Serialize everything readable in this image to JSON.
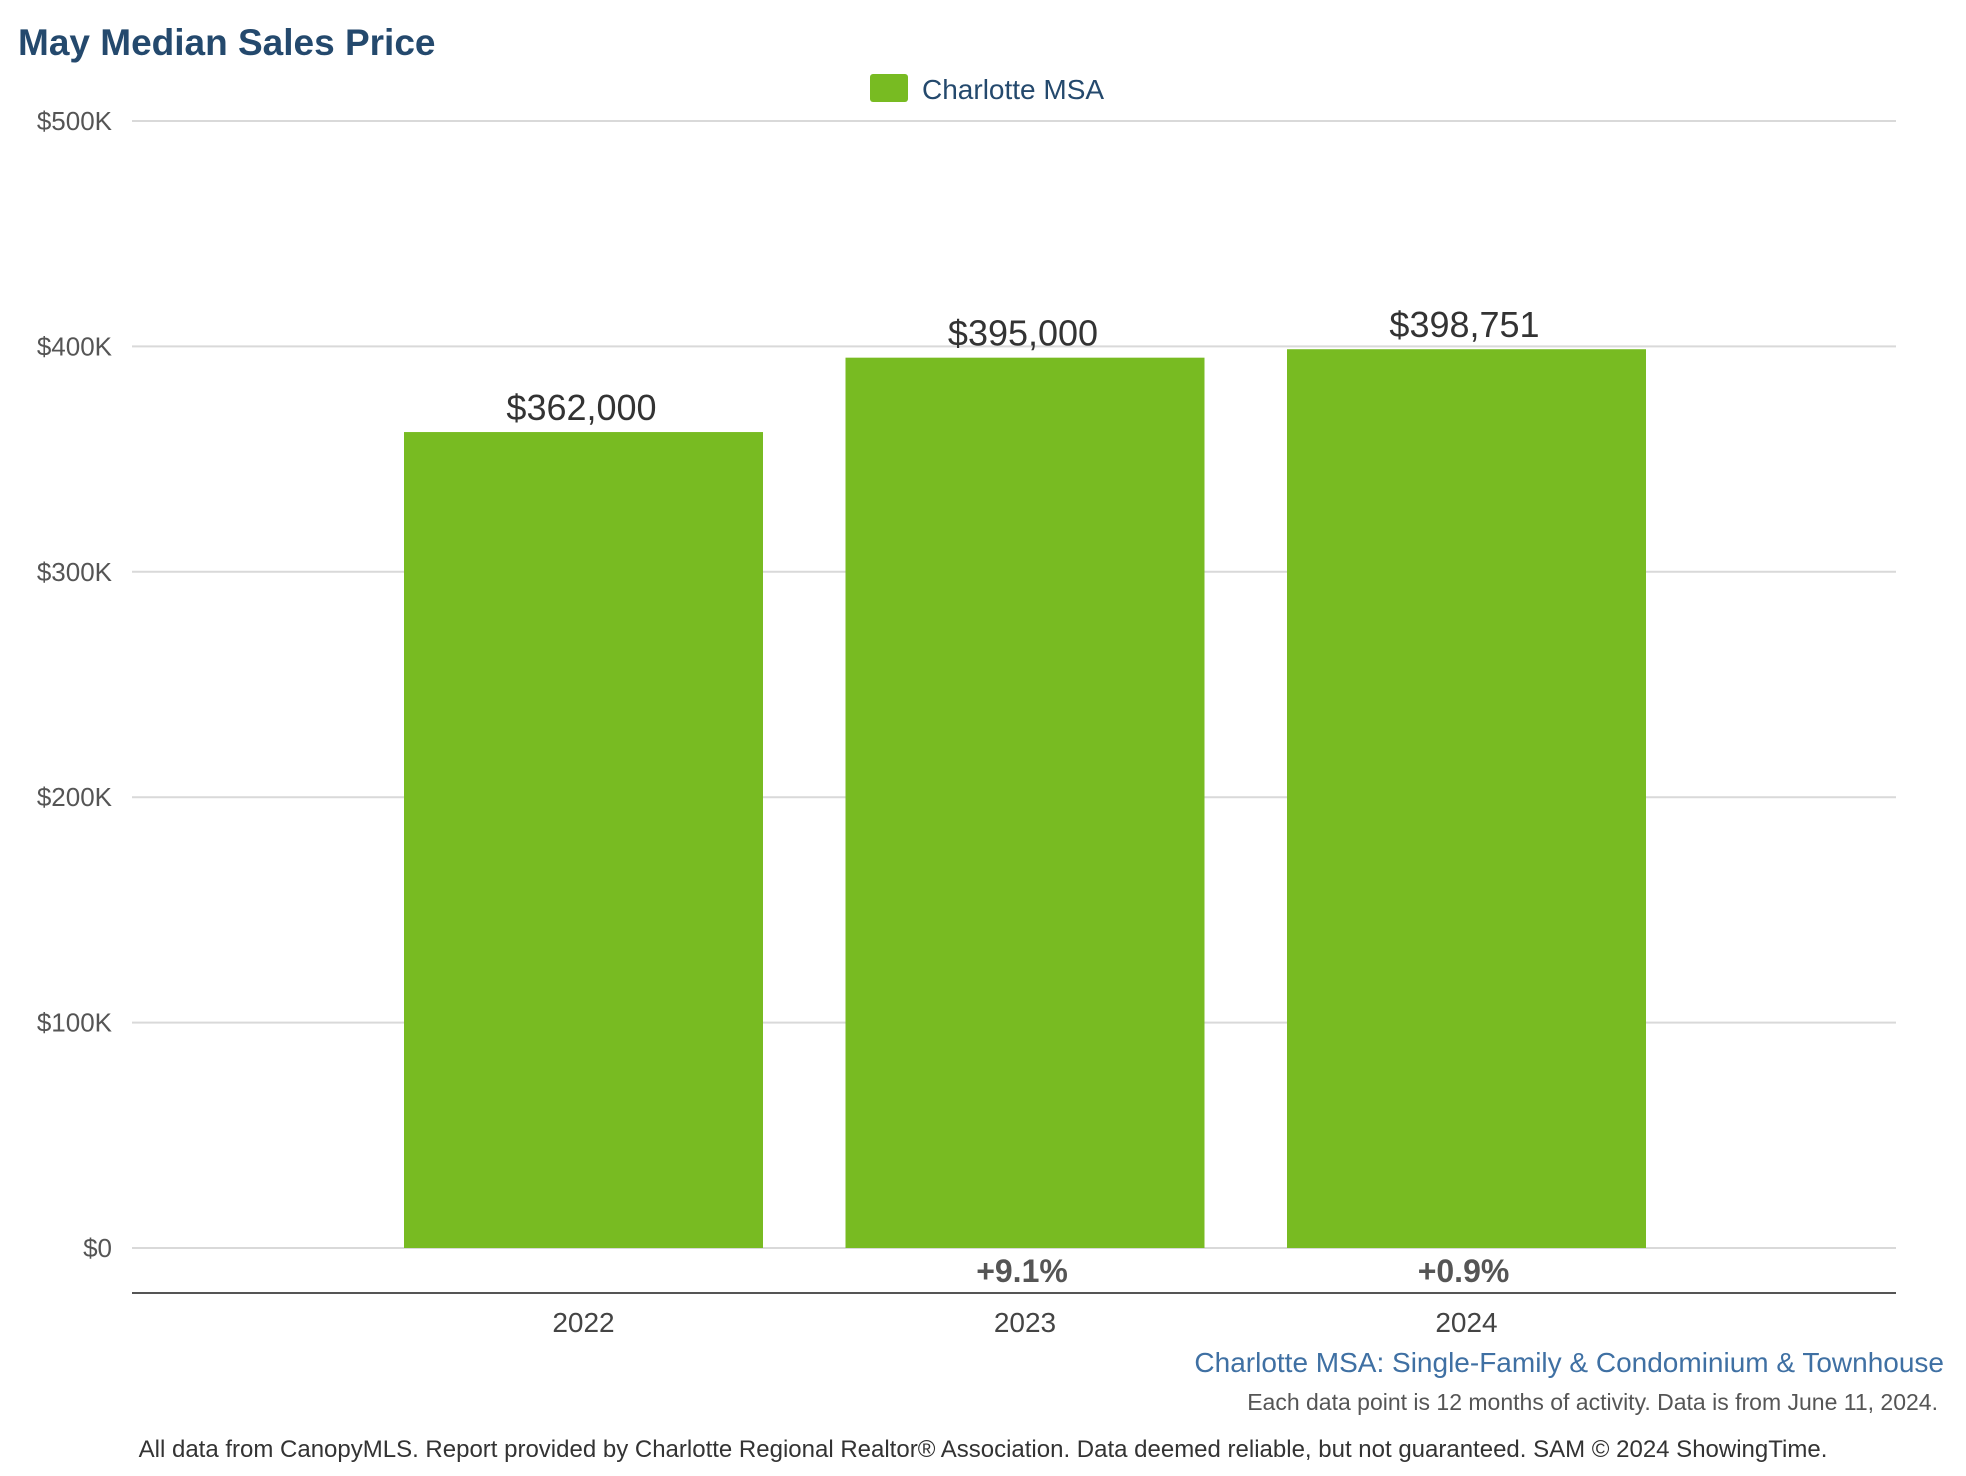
{
  "colors": {
    "bar": "#78bb22",
    "title": "#24496d",
    "grid": "#d9d9d9",
    "axis": "#555555",
    "subtitle": "#3f70a3"
  },
  "chart_data": {
    "type": "bar",
    "title": "May Median Sales Price",
    "legend": {
      "position": "top-center",
      "entries": [
        "Charlotte MSA"
      ]
    },
    "categories": [
      "2022",
      "2023",
      "2024"
    ],
    "series": [
      {
        "name": "Charlotte MSA",
        "values": [
          362000,
          395000,
          398751
        ]
      }
    ],
    "data_labels": [
      "$362,000",
      "$395,000",
      "$398,751"
    ],
    "change_labels": [
      "",
      "+9.1%",
      "+0.9%"
    ],
    "ylim": [
      0,
      500000
    ],
    "yticks": [
      0,
      100000,
      200000,
      300000,
      400000,
      500000
    ],
    "ytick_labels": [
      "$0",
      "$100K",
      "$200K",
      "$300K",
      "$400K",
      "$500K"
    ],
    "grid": true
  },
  "subtitle": "Charlotte MSA: Single-Family & Condominium & Townhouse",
  "note": "Each data point is 12 months of activity. Data is from June 11, 2024.",
  "footer": "All data from CanopyMLS. Report provided by Charlotte Regional Realtor® Association. Data deemed reliable, but not guaranteed. SAM © 2024 ShowingTime."
}
